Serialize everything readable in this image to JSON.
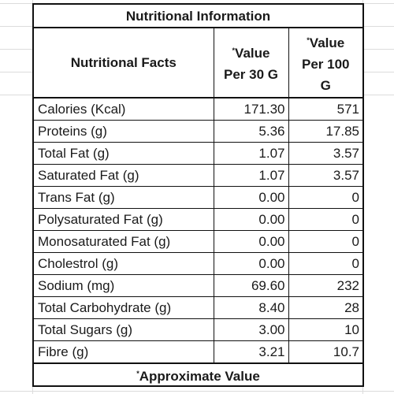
{
  "table": {
    "title": "Nutritional Information",
    "header": {
      "facts": "Nutritional Facts",
      "per30_star": "*",
      "per30_l1": "Value",
      "per30_l2": "Per 30 G",
      "per100_star": "*",
      "per100_l1": "Value",
      "per100_l2": "Per 100",
      "per100_l3": "G"
    },
    "rows": [
      {
        "label": "Calories (Kcal)",
        "per30": "171.30",
        "per100": "571"
      },
      {
        "label": "Proteins (g)",
        "per30": "5.36",
        "per100": "17.85"
      },
      {
        "label": "Total Fat (g)",
        "per30": "1.07",
        "per100": "3.57"
      },
      {
        "label": "Saturated Fat (g)",
        "per30": "1.07",
        "per100": "3.57"
      },
      {
        "label": "Trans Fat (g)",
        "per30": "0.00",
        "per100": "0"
      },
      {
        "label": "Polysaturated Fat (g)",
        "per30": "0.00",
        "per100": "0"
      },
      {
        "label": "Monosaturated Fat (g)",
        "per30": "0.00",
        "per100": "0"
      },
      {
        "label": "Cholestrol (g)",
        "per30": "0.00",
        "per100": "0"
      },
      {
        "label": "Sodium  (mg)",
        "per30": "69.60",
        "per100": "232"
      },
      {
        "label": "Total Carbohydrate (g)",
        "per30": "8.40",
        "per100": "28"
      },
      {
        "label": "Total Sugars (g)",
        "per30": "3.00",
        "per100": "10"
      },
      {
        "label": "Fibre (g)",
        "per30": "3.21",
        "per100": "10.7"
      }
    ],
    "footer_star": "*",
    "footer": "Approximate Value"
  }
}
